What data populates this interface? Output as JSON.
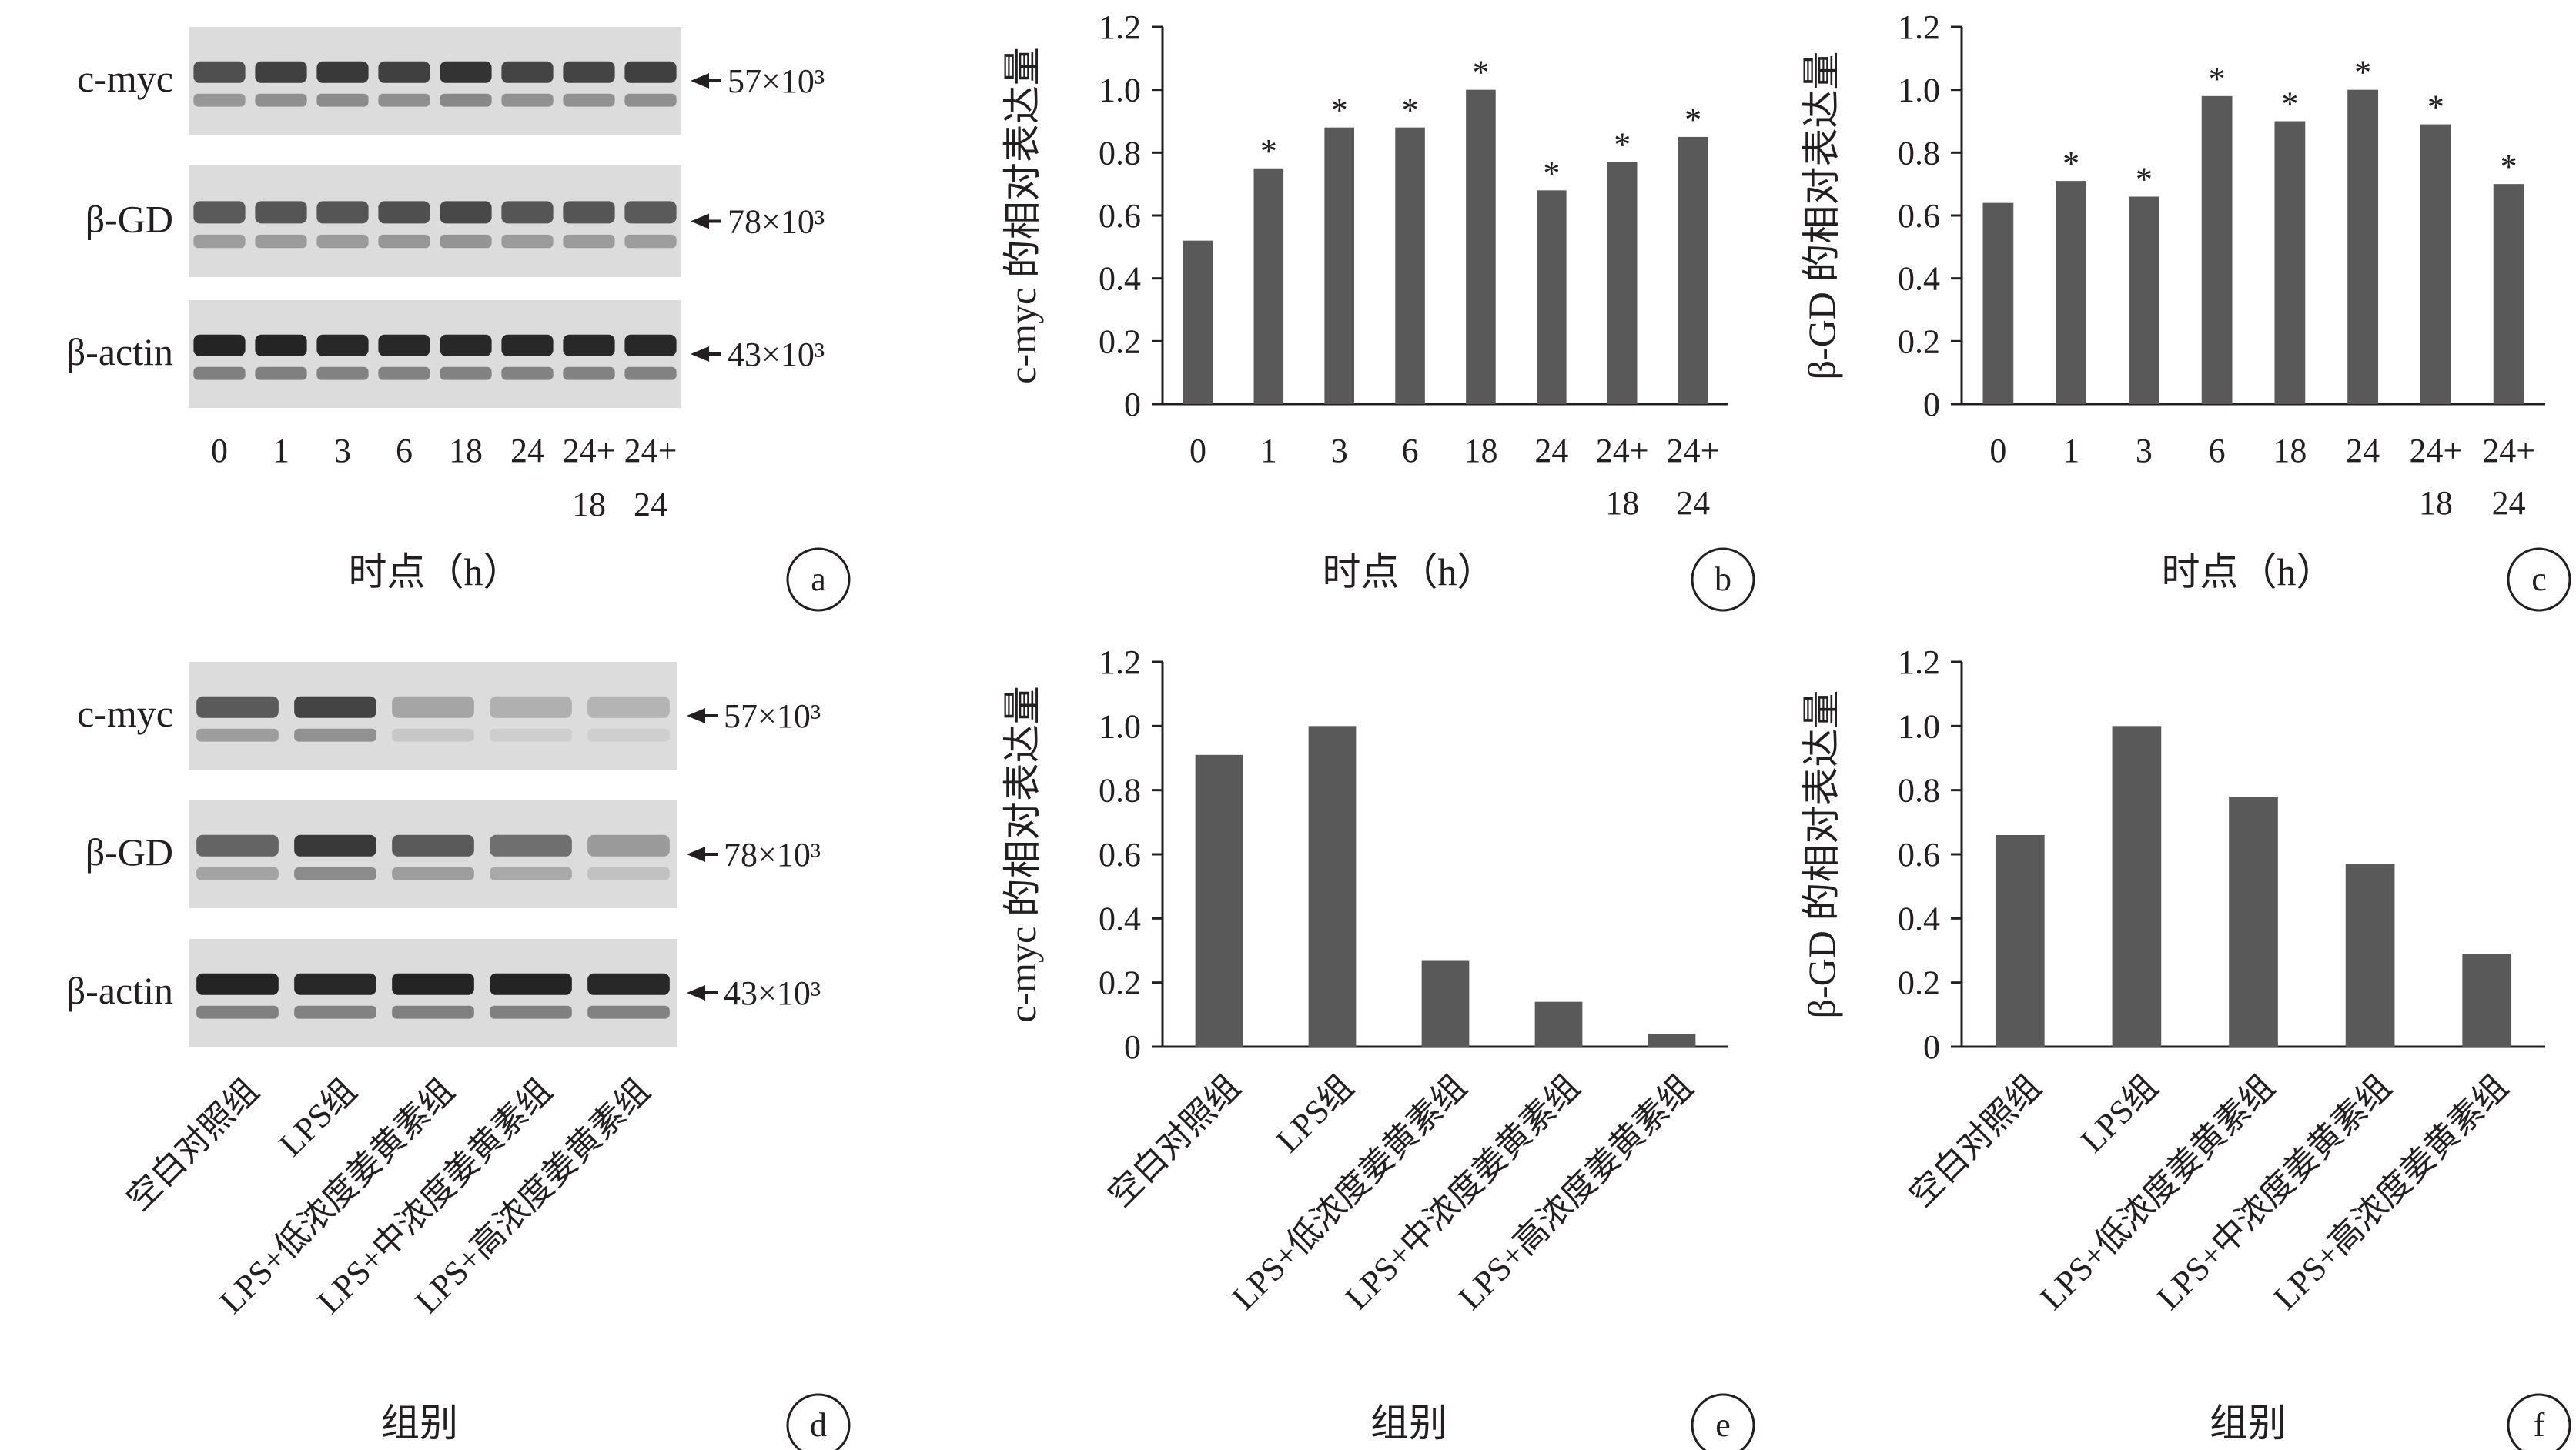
{
  "panels": {
    "a": {
      "letter": "a",
      "blots": [
        {
          "label": "c-myc",
          "mw": "57×10³"
        },
        {
          "label": "β-GD",
          "mw": "78×10³"
        },
        {
          "label": "β-actin",
          "mw": "43×10³"
        }
      ],
      "lanes": [
        [
          "0"
        ],
        [
          "1"
        ],
        [
          "3"
        ],
        [
          "6"
        ],
        [
          "18"
        ],
        [
          "24"
        ],
        [
          "24+",
          "18"
        ],
        [
          "24+",
          "24"
        ]
      ],
      "xlabel": "时点（h）",
      "band_intensity": {
        "c-myc": [
          0.75,
          0.82,
          0.85,
          0.82,
          0.88,
          0.8,
          0.8,
          0.82
        ],
        "β-GD": [
          0.7,
          0.72,
          0.72,
          0.75,
          0.78,
          0.72,
          0.72,
          0.7
        ],
        "β-actin": [
          0.95,
          0.95,
          0.93,
          0.93,
          0.93,
          0.93,
          0.93,
          0.93
        ]
      }
    },
    "d": {
      "letter": "d",
      "blots": [
        {
          "label": "c-myc",
          "mw": "57×10³"
        },
        {
          "label": "β-GD",
          "mw": "78×10³"
        },
        {
          "label": "β-actin",
          "mw": "43×10³"
        }
      ],
      "lanes": [
        "空白对照组",
        "LPS组",
        "LPS+低浓度姜黄素组",
        "LPS+中浓度姜黄素组",
        "LPS+高浓度姜黄素组"
      ],
      "xlabel": "组别",
      "band_intensity": {
        "c-myc": [
          0.7,
          0.8,
          0.35,
          0.3,
          0.28
        ],
        "β-GD": [
          0.65,
          0.85,
          0.7,
          0.6,
          0.4
        ],
        "β-actin": [
          0.95,
          0.93,
          0.95,
          0.95,
          0.93
        ]
      }
    }
  },
  "chart_data": [
    {
      "id": "b",
      "letter": "b",
      "type": "bar",
      "categories": [
        [
          "0"
        ],
        [
          "1"
        ],
        [
          "3"
        ],
        [
          "6"
        ],
        [
          "18"
        ],
        [
          "24"
        ],
        [
          "24+",
          "18"
        ],
        [
          "24+",
          "24"
        ]
      ],
      "values": [
        0.52,
        0.75,
        0.88,
        0.88,
        1.0,
        0.68,
        0.77,
        0.85
      ],
      "significant": [
        false,
        true,
        true,
        true,
        true,
        true,
        true,
        true
      ],
      "ylabel": "c-myc 的相对表达量",
      "xlabel": "时点（h）",
      "ylim": [
        0,
        1.2
      ],
      "yticks": [
        "0",
        "0.2",
        "0.4",
        "0.6",
        "0.8",
        "1.0",
        "1.2"
      ],
      "bar_color": "#595959"
    },
    {
      "id": "c",
      "letter": "c",
      "type": "bar",
      "categories": [
        [
          "0"
        ],
        [
          "1"
        ],
        [
          "3"
        ],
        [
          "6"
        ],
        [
          "18"
        ],
        [
          "24"
        ],
        [
          "24+",
          "18"
        ],
        [
          "24+",
          "24"
        ]
      ],
      "values": [
        0.64,
        0.71,
        0.66,
        0.98,
        0.9,
        1.0,
        0.89,
        0.7
      ],
      "significant": [
        false,
        true,
        true,
        true,
        true,
        true,
        true,
        true
      ],
      "ylabel": "β-GD 的相对表达量",
      "xlabel": "时点（h）",
      "ylim": [
        0,
        1.2
      ],
      "yticks": [
        "0",
        "0.2",
        "0.4",
        "0.6",
        "0.8",
        "1.0",
        "1.2"
      ],
      "bar_color": "#595959"
    },
    {
      "id": "e",
      "letter": "e",
      "type": "bar",
      "categories": [
        "空白对照组",
        "LPS组",
        "LPS+低浓度姜黄素组",
        "LPS+中浓度姜黄素组",
        "LPS+高浓度姜黄素组"
      ],
      "values": [
        0.91,
        1.0,
        0.27,
        0.14,
        0.04
      ],
      "ylabel": "c-myc 的相对表达量",
      "xlabel": "组别",
      "ylim": [
        0,
        1.2
      ],
      "yticks": [
        "0",
        "0.2",
        "0.4",
        "0.6",
        "0.8",
        "1.0",
        "1.2"
      ],
      "bar_color": "#595959"
    },
    {
      "id": "f",
      "letter": "f",
      "type": "bar",
      "categories": [
        "空白对照组",
        "LPS组",
        "LPS+低浓度姜黄素组",
        "LPS+中浓度姜黄素组",
        "LPS+高浓度姜黄素组"
      ],
      "values": [
        0.66,
        1.0,
        0.78,
        0.57,
        0.29
      ],
      "ylabel": "β-GD 的相对表达量",
      "xlabel": "组别",
      "ylim": [
        0,
        1.2
      ],
      "yticks": [
        "0",
        "0.2",
        "0.4",
        "0.6",
        "0.8",
        "1.0",
        "1.2"
      ],
      "bar_color": "#595959"
    }
  ]
}
